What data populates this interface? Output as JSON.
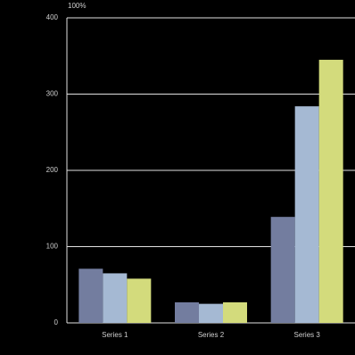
{
  "chart_data": {
    "type": "bar",
    "y_label": "100%",
    "categories": [
      "Series 1",
      "Series 2",
      "Series 3"
    ],
    "series": [
      {
        "color": "#737d9f",
        "values": [
          71,
          27,
          139
        ]
      },
      {
        "color": "#a5b9d3",
        "values": [
          65,
          25,
          284
        ]
      },
      {
        "color": "#d3db7c",
        "values": [
          58,
          27,
          345
        ]
      }
    ],
    "ylim": [
      0,
      400
    ],
    "yticks": [
      0,
      100,
      200,
      300,
      400
    ],
    "grid": true
  }
}
